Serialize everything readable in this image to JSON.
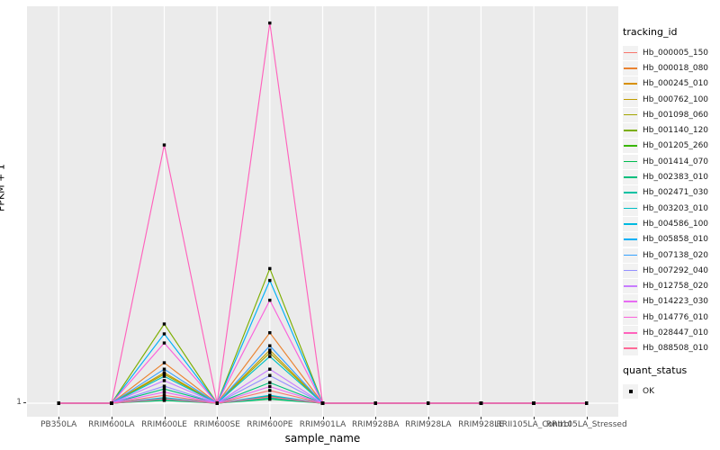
{
  "figure": {
    "ylabel": "FPKM + 1",
    "xlabel": "sample_name",
    "y_tick_label": "1"
  },
  "legend": {
    "tracking_title": "tracking_id",
    "quant_title": "quant_status",
    "quant_item_label": "OK"
  },
  "chart_data": {
    "type": "line",
    "title": "",
    "xlabel": "sample_name",
    "ylabel": "FPKM + 1",
    "y_ticks": [
      "1"
    ],
    "y_axis_note": "Only labeled axis tick is 1 (the baseline, FPKM+1=1). Series values below are estimated fractions of the panel height above that baseline, read from pixel positions.",
    "grid": {
      "vertical_major": true,
      "horizontal_major_at_1": true,
      "gridline_color": "#FFFFFF",
      "panel_bg": "#EBEBEB"
    },
    "legend_position": "right",
    "point_legend": {
      "title": "quant_status",
      "label": "OK",
      "marker": "filled-black-square"
    },
    "categories": [
      "PB350LA",
      "RRIM600LA",
      "RRIM600LE",
      "RRIM600SE",
      "RRIM600PE",
      "RRIM901LA",
      "RRIM928BA",
      "RRIM928LA",
      "RRIM928LE",
      "RRII105LA_Control",
      "RRII105LA_Stressed"
    ],
    "series": [
      {
        "name": "Hb_000005_150",
        "color": "#F8766D",
        "values": [
          0,
          0,
          0.02,
          0,
          0.032,
          0,
          0,
          0,
          0,
          0,
          0
        ]
      },
      {
        "name": "Hb_000018_080",
        "color": "#EA8331",
        "values": [
          0,
          0,
          0.102,
          0,
          0.178,
          0,
          0,
          0,
          0,
          0,
          0
        ]
      },
      {
        "name": "Hb_000245_010",
        "color": "#D89000",
        "values": [
          0,
          0,
          0.01,
          0,
          0.014,
          0,
          0,
          0,
          0,
          0,
          0
        ]
      },
      {
        "name": "Hb_000762_100",
        "color": "#C09B00",
        "values": [
          0,
          0,
          0.077,
          0,
          0.134,
          0,
          0,
          0,
          0,
          0,
          0
        ]
      },
      {
        "name": "Hb_001098_060",
        "color": "#A3A500",
        "values": [
          0,
          0,
          0.073,
          0,
          0.127,
          0,
          0,
          0,
          0,
          0,
          0
        ]
      },
      {
        "name": "Hb_001140_120",
        "color": "#7CAE00",
        "values": [
          0,
          0,
          0.2,
          0,
          0.34,
          0,
          0,
          0,
          0,
          0,
          0
        ]
      },
      {
        "name": "Hb_001205_260",
        "color": "#39B600",
        "values": [
          0,
          0,
          0.012,
          0,
          0.018,
          0,
          0,
          0,
          0,
          0,
          0
        ]
      },
      {
        "name": "Hb_001414_070",
        "color": "#00BB4E",
        "values": [
          0,
          0,
          0.007,
          0,
          0.01,
          0,
          0,
          0,
          0,
          0,
          0
        ]
      },
      {
        "name": "Hb_002383_010",
        "color": "#00BF7D",
        "values": [
          0,
          0,
          0.036,
          0,
          0.052,
          0,
          0,
          0,
          0,
          0,
          0
        ]
      },
      {
        "name": "Hb_002471_030",
        "color": "#00C1A3",
        "values": [
          0,
          0,
          0.009,
          0,
          0.013,
          0,
          0,
          0,
          0,
          0,
          0
        ]
      },
      {
        "name": "Hb_003203_010",
        "color": "#00BFC4",
        "values": [
          0,
          0,
          0.068,
          0,
          0.118,
          0,
          0,
          0,
          0,
          0,
          0
        ]
      },
      {
        "name": "Hb_004586_100",
        "color": "#00BAE0",
        "values": [
          0,
          0,
          0.014,
          0,
          0.02,
          0,
          0,
          0,
          0,
          0,
          0
        ]
      },
      {
        "name": "Hb_005858_010",
        "color": "#00B0F6",
        "values": [
          0,
          0,
          0.175,
          0,
          0.31,
          0,
          0,
          0,
          0,
          0,
          0
        ]
      },
      {
        "name": "Hb_007138_020",
        "color": "#35A2FF",
        "values": [
          0,
          0,
          0.086,
          0,
          0.145,
          0,
          0,
          0,
          0,
          0,
          0
        ]
      },
      {
        "name": "Hb_007292_040",
        "color": "#9590FF",
        "values": [
          0,
          0,
          0.043,
          0,
          0.07,
          0,
          0,
          0,
          0,
          0,
          0
        ]
      },
      {
        "name": "Hb_012758_020",
        "color": "#C77CFF",
        "values": [
          0,
          0,
          0.057,
          0,
          0.086,
          0,
          0,
          0,
          0,
          0,
          0
        ]
      },
      {
        "name": "Hb_014223_030",
        "color": "#E76BF3",
        "values": [
          0,
          0,
          0.028,
          0,
          0.042,
          0,
          0,
          0,
          0,
          0,
          0
        ]
      },
      {
        "name": "Hb_014776_010",
        "color": "#FA62DB",
        "values": [
          0,
          0,
          0.152,
          0,
          0.26,
          0,
          0,
          0,
          0,
          0,
          0
        ]
      },
      {
        "name": "Hb_028447_010",
        "color": "#FF62BC",
        "values": [
          0,
          0,
          0.652,
          0,
          0.96,
          0,
          0,
          0,
          0,
          0,
          0
        ]
      },
      {
        "name": "Hb_088508_010",
        "color": "#FF6A98",
        "values": [
          0,
          0,
          0.011,
          0,
          0.016,
          0,
          0,
          0,
          0,
          0,
          0
        ]
      }
    ]
  }
}
